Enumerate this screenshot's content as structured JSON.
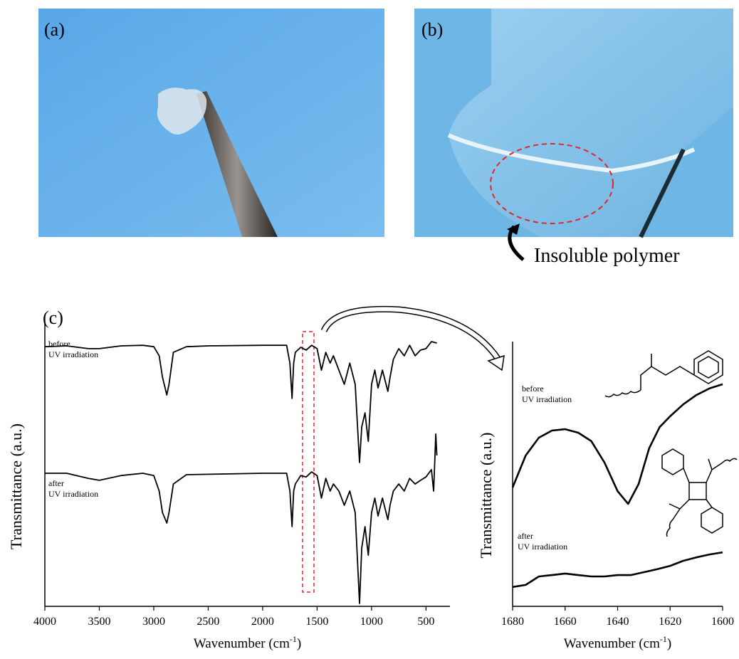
{
  "panels": [
    {
      "label": "(a)"
    },
    {
      "label": "(b)",
      "annotation": "Insoluble polymer"
    }
  ],
  "chart_data": [
    {
      "type": "line",
      "label": "(c)",
      "ylabel": "Transmittance (a.u.)",
      "xlabel": "Wavenumber  (cm",
      "xlabel_sup": "-1",
      "xlabel_end": ")",
      "xlim": [
        4000,
        280
      ],
      "ylim": [
        0,
        100
      ],
      "xticks": [
        4000,
        3500,
        3000,
        2500,
        2000,
        1500,
        1000,
        500
      ],
      "series": [
        {
          "color": "#000000",
          "x": [
            4000,
            3800,
            3600,
            3500,
            3300,
            3100,
            3000,
            2950,
            2920,
            2880,
            2860,
            2820,
            2700,
            2500,
            2000,
            1780,
            1750,
            1730,
            1715,
            1700,
            1650,
            1600,
            1550,
            1500,
            1460,
            1420,
            1380,
            1350,
            1300,
            1250,
            1200,
            1150,
            1110,
            1090,
            1060,
            1030,
            1000,
            970,
            940,
            900,
            850,
            830,
            800,
            750,
            700,
            650,
            600,
            550,
            500,
            450,
            400
          ],
          "values": [
            91.9,
            92.2,
            91.2,
            91.2,
            92.2,
            92.4,
            91.9,
            88.7,
            81.1,
            74.8,
            78.6,
            89.9,
            91.9,
            92.2,
            92.4,
            92.4,
            86.1,
            73.6,
            86.1,
            89.9,
            91.7,
            90.7,
            92.4,
            91.2,
            83.6,
            89.9,
            86.1,
            88.7,
            83.6,
            78.6,
            86.1,
            78.6,
            50.9,
            63.5,
            68.5,
            58.4,
            78.6,
            83.6,
            77.3,
            83.6,
            76.1,
            81.1,
            87.4,
            91.2,
            88.7,
            92.4,
            88.7,
            90.7,
            91.2,
            93.7,
            93.2
          ]
        },
        {
          "color": "#000000",
          "x": [
            4000,
            3800,
            3600,
            3500,
            3300,
            3100,
            3000,
            2950,
            2920,
            2880,
            2860,
            2820,
            2700,
            2000,
            1780,
            1750,
            1730,
            1715,
            1700,
            1650,
            1600,
            1550,
            1500,
            1460,
            1420,
            1380,
            1350,
            1300,
            1250,
            1200,
            1150,
            1110,
            1090,
            1060,
            1030,
            1000,
            970,
            940,
            900,
            850,
            830,
            800,
            750,
            700,
            650,
            600,
            550,
            500,
            450,
            430,
            410,
            400
          ],
          "values": [
            47.1,
            47.1,
            45.3,
            44.6,
            46.3,
            47.1,
            46.3,
            40.8,
            33.2,
            29.5,
            33.2,
            43.3,
            46.6,
            47.1,
            47.1,
            40.8,
            28.2,
            40.8,
            43.3,
            46.3,
            45.8,
            47.6,
            46.3,
            38.3,
            45.3,
            40.8,
            43.3,
            40.8,
            35.8,
            40.8,
            33.2,
            1.0,
            20.7,
            28.2,
            18.1,
            33.2,
            38.3,
            32.0,
            38.3,
            30.7,
            35.8,
            40.8,
            43.3,
            40.8,
            45.3,
            43.3,
            44.6,
            45.8,
            48.4,
            40.8,
            61.0,
            53.4
          ]
        }
      ],
      "annotations": [
        {
          "lines": [
            "before",
            "UV irradiation"
          ]
        },
        {
          "lines": [
            "after",
            "UV irradiation"
          ]
        }
      ]
    },
    {
      "type": "line",
      "ylabel": "Transmittance (a.u.)",
      "xlabel": "Wavenumber  (cm",
      "xlabel_sup": "-1",
      "xlabel_end": ")",
      "xlim": [
        1680,
        1600
      ],
      "ylim": [
        0,
        100
      ],
      "xticks": [
        1680,
        1660,
        1640,
        1620,
        1600
      ],
      "series": [
        {
          "color": "#000000",
          "x": [
            1680,
            1675,
            1670,
            1665,
            1660,
            1655,
            1650,
            1645,
            1640,
            1636,
            1632,
            1628,
            1624,
            1620,
            1615,
            1610,
            1605,
            1600
          ],
          "values": [
            44.9,
            57.0,
            63.7,
            66.4,
            66.9,
            65.6,
            62.4,
            54.3,
            43.5,
            38.7,
            46.2,
            59.7,
            67.7,
            71.8,
            76.3,
            79.8,
            82.3,
            83.9
          ]
        },
        {
          "color": "#000000",
          "x": [
            1680,
            1675,
            1670,
            1665,
            1660,
            1655,
            1650,
            1645,
            1640,
            1635,
            1630,
            1625,
            1620,
            1615,
            1610,
            1605,
            1600
          ],
          "values": [
            7.3,
            8.1,
            11.3,
            11.8,
            12.4,
            11.8,
            11.3,
            11.3,
            11.8,
            11.8,
            12.9,
            14.0,
            15.3,
            17.2,
            18.5,
            19.6,
            20.4
          ]
        }
      ],
      "annotations": [
        {
          "lines": [
            "before",
            "UV irradiation"
          ]
        },
        {
          "lines": [
            "after",
            "UV irradiation"
          ]
        }
      ]
    }
  ]
}
